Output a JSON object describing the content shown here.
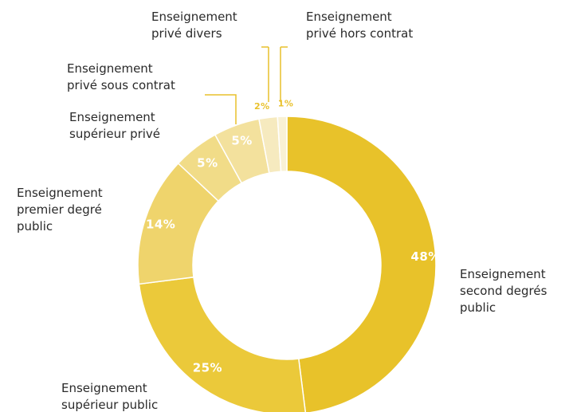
{
  "chart_data": {
    "type": "pie",
    "variant": "donut",
    "title": "",
    "start_angle_deg": 0,
    "direction": "clockwise",
    "slices": [
      {
        "label": "Enseignement second degrés public",
        "value": 48,
        "value_label": "48%",
        "color": "#e8c22a"
      },
      {
        "label": "Enseignement supérieur public",
        "value": 25,
        "value_label": "25%",
        "color": "#ebc93a"
      },
      {
        "label": "Enseignement premier degré public",
        "value": 14,
        "value_label": "14%",
        "color": "#efd46c"
      },
      {
        "label": "Enseignement supérieur privé",
        "value": 5,
        "value_label": "5%",
        "color": "#f1dc88"
      },
      {
        "label": "Enseignement privé sous contrat",
        "value": 5,
        "value_label": "5%",
        "color": "#f3e19d"
      },
      {
        "label": "Enseignement privé divers",
        "value": 2,
        "value_label": "2%",
        "color": "#f6eabf"
      },
      {
        "label": "Enseignement privé hors contrat",
        "value": 1,
        "value_label": "1%",
        "color": "#f9f1d4"
      }
    ],
    "legend": "none",
    "label_placement": "outside"
  }
}
